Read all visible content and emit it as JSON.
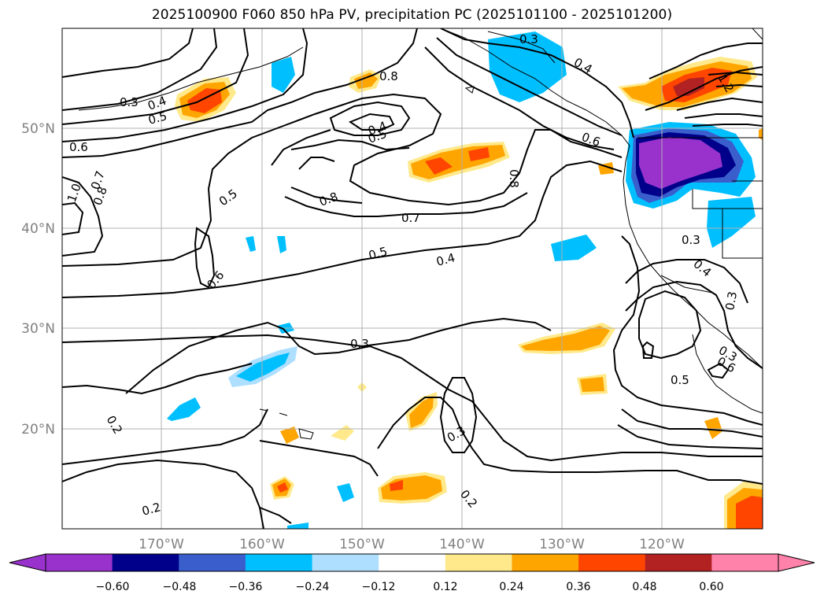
{
  "title": "2025100900 F060 850 hPa PV, precipitation PC (2025101100 - 2025101200)",
  "map": {
    "lat_labels": [
      "50°N",
      "40°N",
      "30°N",
      "20°N"
    ],
    "lon_labels": [
      "170°W",
      "160°W",
      "150°W",
      "140°W",
      "130°W",
      "120°W"
    ],
    "gridlines": true
  },
  "colorbar": {
    "ticks": [
      "−0.60",
      "−0.48",
      "−0.36",
      "−0.24",
      "−0.12",
      "0.12",
      "0.24",
      "0.36",
      "0.48",
      "0.60"
    ],
    "colors": [
      "#9932cc",
      "#00008b",
      "#3a5fcd",
      "#00bfff",
      "#afdfff",
      "#ffffff",
      "#ffe98a",
      "#ffa500",
      "#ff4500",
      "#b22222",
      "#ff82ab"
    ]
  },
  "pv_contour_labels": [
    {
      "text": "0.3"
    },
    {
      "text": "0.4"
    },
    {
      "text": "0.5"
    },
    {
      "text": "0.6"
    },
    {
      "text": "0.7"
    },
    {
      "text": "0.8"
    },
    {
      "text": "1.0"
    },
    {
      "text": "0.4"
    },
    {
      "text": "0.5"
    },
    {
      "text": "0.8"
    },
    {
      "text": "0.8"
    },
    {
      "text": "0.7"
    },
    {
      "text": "0.5"
    },
    {
      "text": "0.4"
    },
    {
      "text": "0.5"
    },
    {
      "text": "0.6"
    },
    {
      "text": "0.3"
    },
    {
      "text": "0.3"
    },
    {
      "text": "0.4"
    },
    {
      "text": "0.6"
    },
    {
      "text": "0.8"
    },
    {
      "text": "1.2"
    },
    {
      "text": "0.3"
    },
    {
      "text": "0.4"
    },
    {
      "text": "0.3"
    },
    {
      "text": "0.3"
    },
    {
      "text": "0.6"
    },
    {
      "text": "0.5"
    },
    {
      "text": "0.2"
    },
    {
      "text": "0.2"
    },
    {
      "text": "0.3"
    },
    {
      "text": "0.2"
    }
  ]
}
